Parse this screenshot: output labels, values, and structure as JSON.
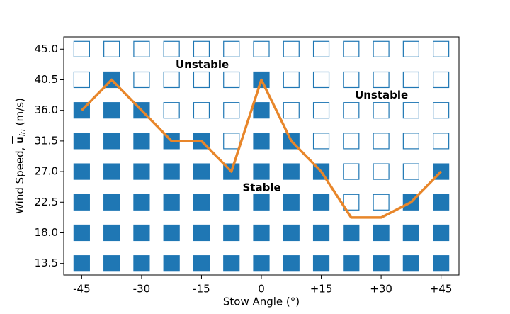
{
  "chart_data": {
    "type": "line",
    "xlabel": "Stow Angle (°)",
    "ylabel": {
      "text": "Wind Speed, ",
      "symbol": "u",
      "subscript": "in",
      "unit": " (m/s)"
    },
    "x": [
      -45,
      -37.5,
      -30,
      -22.5,
      -15,
      -7.5,
      0,
      7.5,
      15,
      22.5,
      30,
      37.5,
      45
    ],
    "values": [
      36.0,
      40.5,
      36.0,
      31.5,
      31.5,
      27.0,
      40.5,
      31.5,
      27.0,
      20.25,
      20.25,
      22.5,
      27.0
    ],
    "color": "#e8862a",
    "marker_color": "#1f77b4",
    "xlim": [
      -49.5,
      49.5
    ],
    "ylim": [
      11.8,
      46.8
    ],
    "xticks": [
      -45,
      -30,
      -15,
      0,
      {
        "value": 15,
        "label": "+15"
      },
      {
        "value": 30,
        "label": "+30"
      },
      {
        "value": 45,
        "label": "+45"
      }
    ],
    "yticks": [
      {
        "value": 13.5,
        "label": "13.5"
      },
      {
        "value": 18,
        "label": "18.0"
      },
      {
        "value": 22.5,
        "label": "22.5"
      },
      {
        "value": 27,
        "label": "27.0"
      },
      {
        "value": 31.5,
        "label": "31.5"
      },
      {
        "value": 36,
        "label": "36.0"
      },
      {
        "value": 40.5,
        "label": "40.5"
      },
      {
        "value": 45,
        "label": "45.0"
      }
    ],
    "annotations": [
      {
        "text": "Unstable",
        "x": -14.8,
        "y": 42.7
      },
      {
        "text": "Unstable",
        "x": 30.1,
        "y": 38.2
      },
      {
        "text": "Stable",
        "x": 0.1,
        "y": 24.6
      }
    ]
  }
}
